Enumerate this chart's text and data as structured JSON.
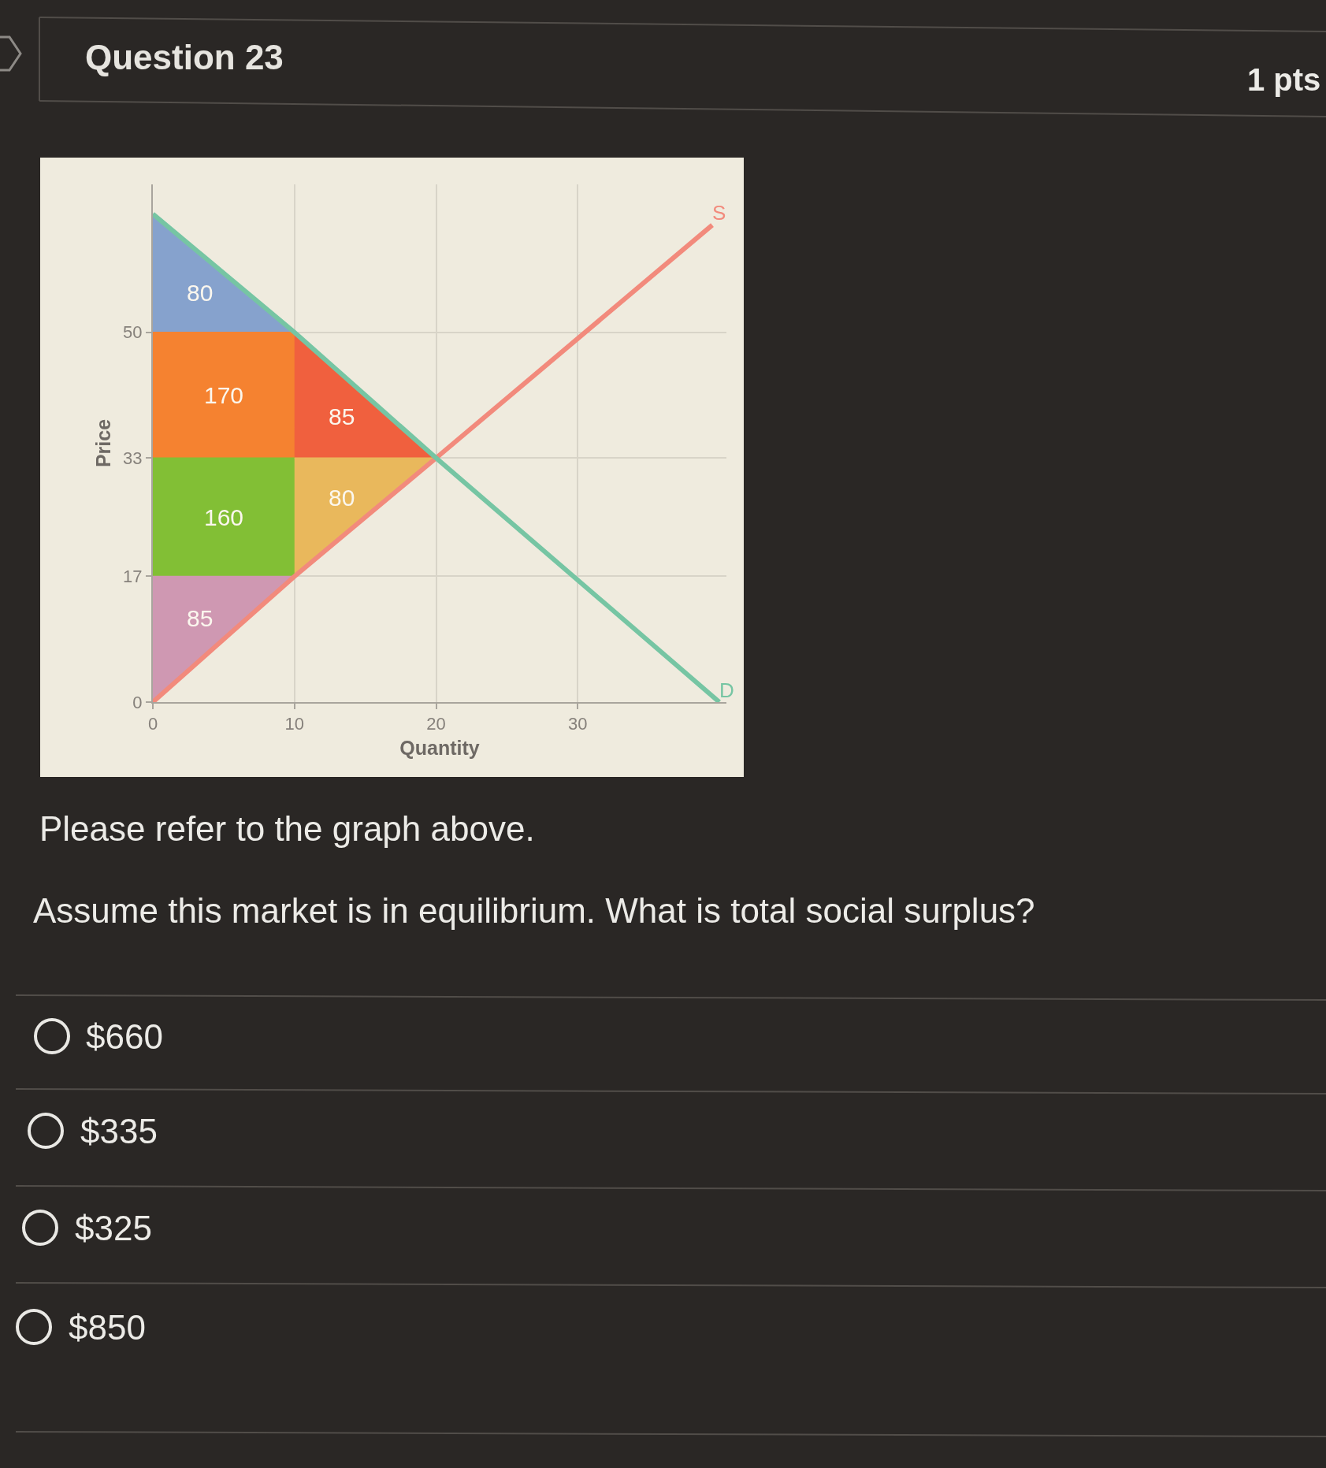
{
  "chart_data": {
    "type": "line",
    "title": "Question 23",
    "xlabel": "Quantity",
    "ylabel": "Price",
    "xlim": [
      0,
      40.5
    ],
    "ylim": [
      0,
      70
    ],
    "xticks": [
      0,
      10,
      20,
      30
    ],
    "yticks": [
      0,
      17,
      33,
      50
    ],
    "grid": true,
    "series": [
      {
        "type": "area",
        "color": "#86a2cd",
        "x": [
          0,
          10,
          0
        ],
        "values": [
          66,
          50,
          50
        ]
      },
      {
        "type": "area",
        "color": "#f58230",
        "x": [
          0,
          10,
          10,
          0
        ],
        "values": [
          50,
          50,
          33,
          33
        ]
      },
      {
        "type": "area",
        "color": "#f0603e",
        "x": [
          10,
          20,
          10
        ],
        "values": [
          50,
          33,
          33
        ]
      },
      {
        "type": "area",
        "color": "#82bf35",
        "x": [
          0,
          10,
          10,
          0
        ],
        "values": [
          33,
          33,
          17,
          17
        ]
      },
      {
        "type": "area",
        "color": "#e9b85c",
        "x": [
          10,
          20,
          10
        ],
        "values": [
          33,
          33,
          17
        ]
      },
      {
        "type": "area",
        "color": "#cf98b2",
        "x": [
          0,
          10,
          0
        ],
        "values": [
          17,
          17,
          0
        ]
      },
      {
        "name": "S",
        "color": "#f28a7c",
        "x": [
          0,
          10,
          20,
          39.5
        ],
        "values": [
          0,
          17,
          33,
          64.5
        ]
      },
      {
        "name": "D",
        "color": "#76c5a3",
        "x": [
          0,
          10,
          20,
          40
        ],
        "values": [
          66,
          50,
          33,
          0
        ]
      }
    ],
    "annotations": [
      "80",
      "170",
      "85",
      "160",
      "80",
      "85",
      "1 pts",
      "Please refer to the graph above.",
      "Assume this market is in equilibrium. What is total social surplus?",
      "$660",
      "$335",
      "$325",
      "$850"
    ]
  }
}
